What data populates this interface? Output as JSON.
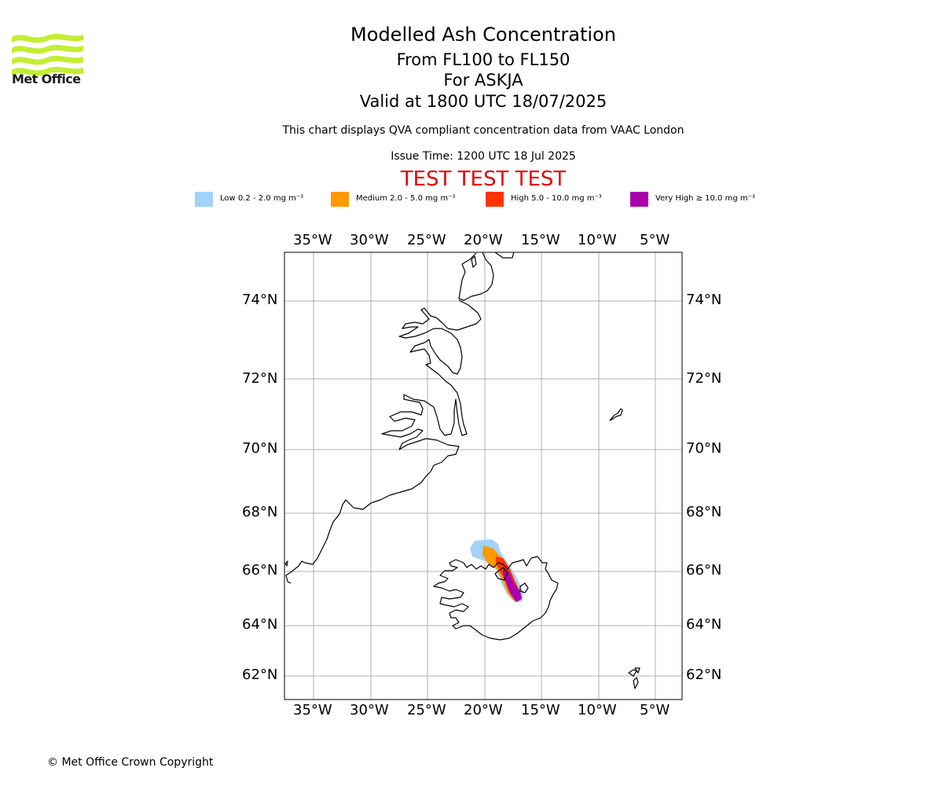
{
  "header": {
    "title": "Modelled Ash Concentration",
    "levels": "From FL100 to FL150",
    "volcano": "For ASKJA",
    "valid": "Valid at 1800 UTC 18/07/2025",
    "disclaimer": "This chart displays QVA compliant concentration data from VAAC London",
    "issue_time": "Issue Time: 1200 UTC 18 Jul 2025",
    "test_banner": "TEST TEST TEST",
    "logo_text": "Met Office"
  },
  "legend": [
    {
      "label": "Low 0.2 - 2.0 mg m⁻³",
      "color": "#a1d2fa"
    },
    {
      "label": "Medium 2.0 - 5.0 mg m⁻³",
      "color": "#ff9900"
    },
    {
      "label": "High 5.0 - 10.0 mg m⁻³",
      "color": "#ff3300"
    },
    {
      "label": "Very High  ≥  10.0 mg m⁻³",
      "color": "#aa00aa"
    }
  ],
  "map": {
    "lon_labels": [
      "35°W",
      "30°W",
      "25°W",
      "20°W",
      "15°W",
      "10°W",
      "5°W"
    ],
    "lat_labels": [
      "74°N",
      "72°N",
      "70°N",
      "68°N",
      "66°N",
      "64°N",
      "62°N"
    ]
  },
  "footer": {
    "copyright": "© Met Office Crown Copyright"
  }
}
